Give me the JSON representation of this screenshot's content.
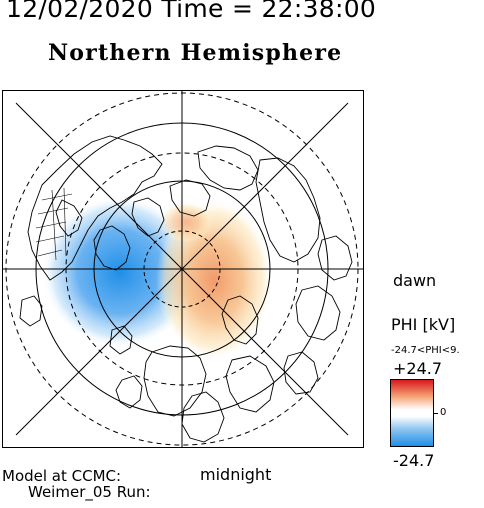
{
  "header": {
    "date_time": "12/02/2020 Time = 22:38:00"
  },
  "title": "Northern Hemisphere",
  "labels": {
    "dawn": "dawn",
    "midnight": "midnight"
  },
  "colorbar": {
    "title": "PHI [kV]",
    "range_note": "-24.7<PHI<9.",
    "max_label": "+24.7",
    "zero_label": "0",
    "min_label": "-24.7",
    "colors": {
      "positive": "#d7191c",
      "neutral": "#ffffff",
      "negative": "#1f8fe8"
    }
  },
  "model": {
    "line1": "Model at CCMC:",
    "line2": "Weimer_05 Run:"
  },
  "potential_cells": [
    {
      "sign": "negative",
      "color": "#1f8fe8"
    },
    {
      "sign": "positive",
      "color": "#f2a870"
    }
  ]
}
